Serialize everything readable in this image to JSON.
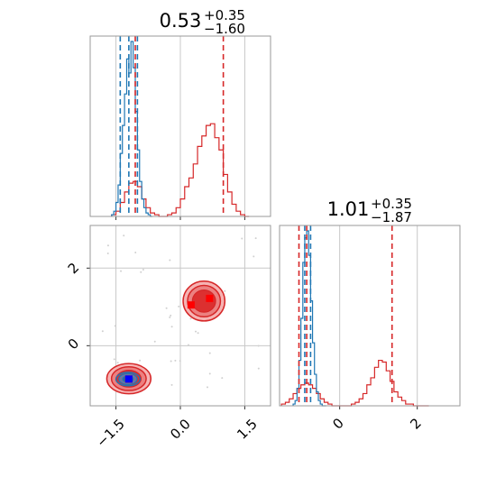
{
  "chart_data": {
    "type": "corner",
    "colors": {
      "blue": "#1f77b4",
      "red": "#d62728",
      "red_fill": "#f08080",
      "grid": "#c8c8c8",
      "frame": "#999999"
    },
    "titles": [
      {
        "main": "0.53",
        "sup": "+0.35",
        "sub": "−1.60"
      },
      {
        "main": "1.01",
        "sup": "+0.35",
        "sub": "−1.87"
      }
    ],
    "axis_x1": {
      "range": [
        -2.1,
        2.1
      ],
      "ticks": [
        -1.5,
        0.0,
        1.5
      ],
      "tick_labels": [
        "−1.5",
        "0.0",
        "1.5"
      ]
    },
    "axis_y2": {
      "range": [
        -1.55,
        3.1
      ],
      "ticks": [
        0,
        2
      ],
      "tick_labels": [
        "0",
        "2"
      ]
    },
    "axis_x2": {
      "range": [
        -1.55,
        3.1
      ],
      "ticks": [
        0,
        2
      ],
      "tick_labels": [
        "0",
        "2"
      ]
    },
    "hist1": {
      "blue": {
        "xs": [
          -1.6,
          -1.55,
          -1.5,
          -1.45,
          -1.4,
          -1.35,
          -1.3,
          -1.25,
          -1.2,
          -1.15,
          -1.1,
          -1.05,
          -1.0,
          -0.95,
          -0.9,
          -0.85,
          -0.8,
          -0.75,
          -0.7
        ],
        "h": [
          0.01,
          0.03,
          0.08,
          0.18,
          0.36,
          0.52,
          0.7,
          0.9,
          0.82,
          1.0,
          0.85,
          0.6,
          0.38,
          0.2,
          0.1,
          0.05,
          0.02,
          0.01,
          0.0
        ]
      },
      "red": {
        "xs": [
          -1.6,
          -1.5,
          -1.4,
          -1.3,
          -1.2,
          -1.1,
          -1.0,
          -0.9,
          -0.8,
          -0.7,
          -0.6,
          -0.5,
          -0.4,
          -0.3,
          -0.2,
          -0.1,
          0.0,
          0.1,
          0.2,
          0.3,
          0.4,
          0.5,
          0.6,
          0.7,
          0.8,
          0.9,
          1.0,
          1.1,
          1.2,
          1.3,
          1.4,
          1.5
        ],
        "h": [
          0.01,
          0.03,
          0.08,
          0.14,
          0.19,
          0.2,
          0.17,
          0.1,
          0.05,
          0.02,
          0.01,
          0.0,
          0.0,
          0.01,
          0.02,
          0.05,
          0.1,
          0.17,
          0.22,
          0.3,
          0.4,
          0.46,
          0.52,
          0.53,
          0.45,
          0.38,
          0.24,
          0.14,
          0.07,
          0.03,
          0.01,
          0.0
        ]
      },
      "lines_blue": [
        -1.4,
        -1.2,
        -1.0
      ],
      "lines_red": [
        -1.05,
        1.0
      ]
    },
    "hist2": {
      "blue": {
        "xs": [
          -1.2,
          -1.15,
          -1.1,
          -1.05,
          -1.0,
          -0.95,
          -0.9,
          -0.85,
          -0.8,
          -0.75,
          -0.7,
          -0.65,
          -0.6,
          -0.55,
          -0.5,
          -0.45,
          -0.4
        ],
        "h": [
          0.01,
          0.03,
          0.1,
          0.26,
          0.5,
          0.82,
          0.96,
          1.0,
          0.86,
          0.6,
          0.36,
          0.18,
          0.08,
          0.03,
          0.01,
          0.0,
          0.0
        ]
      },
      "red": {
        "xs": [
          -1.5,
          -1.4,
          -1.3,
          -1.2,
          -1.1,
          -1.0,
          -0.9,
          -0.8,
          -0.7,
          -0.6,
          -0.5,
          -0.4,
          -0.3,
          -0.2,
          -0.1,
          0.0,
          0.1,
          0.2,
          0.3,
          0.4,
          0.5,
          0.6,
          0.7,
          0.8,
          0.9,
          1.0,
          1.1,
          1.2,
          1.3,
          1.4,
          1.5,
          1.6,
          1.7,
          1.8,
          1.9,
          2.0,
          2.1,
          2.2
        ],
        "h": [
          0.01,
          0.02,
          0.04,
          0.07,
          0.1,
          0.12,
          0.13,
          0.12,
          0.1,
          0.07,
          0.04,
          0.02,
          0.01,
          0.0,
          0.0,
          0.0,
          0.0,
          0.0,
          0.01,
          0.02,
          0.04,
          0.07,
          0.12,
          0.16,
          0.22,
          0.26,
          0.25,
          0.2,
          0.14,
          0.08,
          0.05,
          0.03,
          0.01,
          0.01,
          0.0,
          0.0,
          0.0,
          0.0
        ]
      },
      "lines_blue": [
        -0.9,
        -0.75
      ],
      "lines_red": [
        -1.05,
        -0.85,
        1.35
      ]
    },
    "scatter_2d": {
      "blue_clusters": [
        {
          "cx": -1.22,
          "cy": -0.86,
          "rx": 0.45,
          "ry": 0.33
        }
      ],
      "red_clusters": [
        {
          "cx": -1.2,
          "cy": -0.85,
          "rx": 0.95,
          "ry": 0.72
        },
        {
          "cx": 0.55,
          "cy": 1.15,
          "rx": 0.9,
          "ry": 0.95
        }
      ],
      "markers_blue": [
        {
          "x": -1.2,
          "y": -0.86
        }
      ],
      "markers_red": [
        {
          "x": -1.2,
          "y": -0.86
        },
        {
          "x": 0.25,
          "y": 1.05
        },
        {
          "x": 0.68,
          "y": 1.22
        }
      ]
    }
  }
}
